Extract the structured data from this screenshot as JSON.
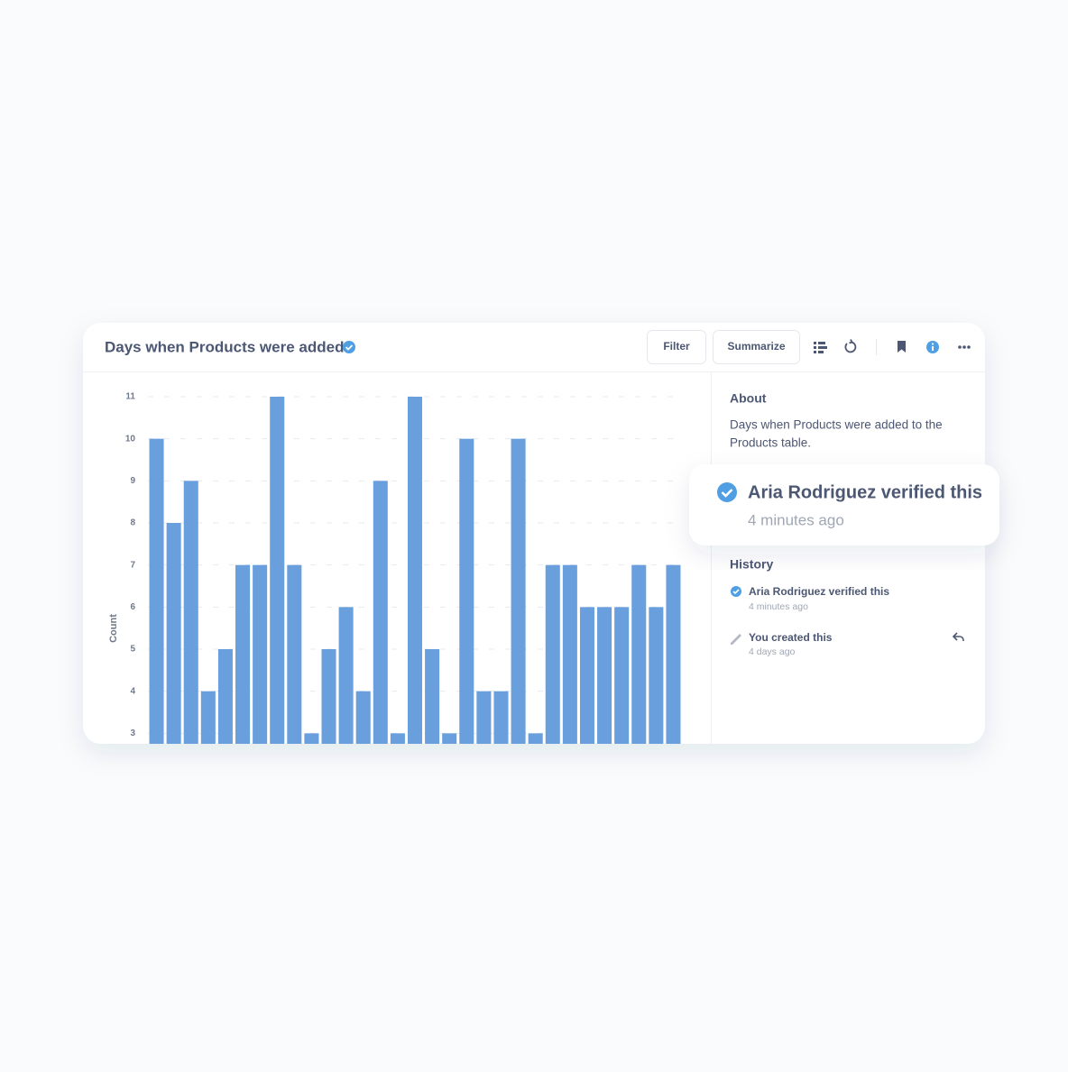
{
  "header": {
    "title": "Days when Products were added",
    "buttons": [
      "Filter",
      "Summarize"
    ]
  },
  "chart_data": {
    "type": "bar",
    "y_label": "Count",
    "categories": [
      null,
      null,
      null,
      null,
      null,
      null,
      null,
      null,
      null,
      null,
      null,
      null,
      null,
      null,
      null,
      null,
      null,
      null,
      null,
      null,
      null,
      null,
      null,
      null,
      null,
      null,
      null,
      null,
      null,
      null,
      null
    ],
    "values": [
      10,
      8,
      9,
      4,
      5,
      7,
      7,
      11,
      7,
      3,
      5,
      6,
      4,
      9,
      3,
      11,
      5,
      3,
      10,
      4,
      4,
      10,
      3,
      7,
      7,
      6,
      6,
      6,
      7,
      6,
      7
    ],
    "color": "#6a9fde",
    "ylim": [
      2.75,
      11
    ],
    "yticks": [
      3,
      4,
      5,
      6,
      7,
      8,
      9,
      10,
      11
    ],
    "grid": true
  },
  "sidebar": {
    "about_title": "About",
    "about_text": [
      "Days when Products were added to the",
      "Products table."
    ],
    "history_title": "History",
    "history": [
      {
        "text": "Aria Rodriguez verified this",
        "time": "4 minutes ago"
      },
      {
        "text": "You created this",
        "time": "4 days ago"
      }
    ]
  },
  "popover": {
    "text": "Aria Rodriguez verified this",
    "time": "4 minutes ago"
  }
}
